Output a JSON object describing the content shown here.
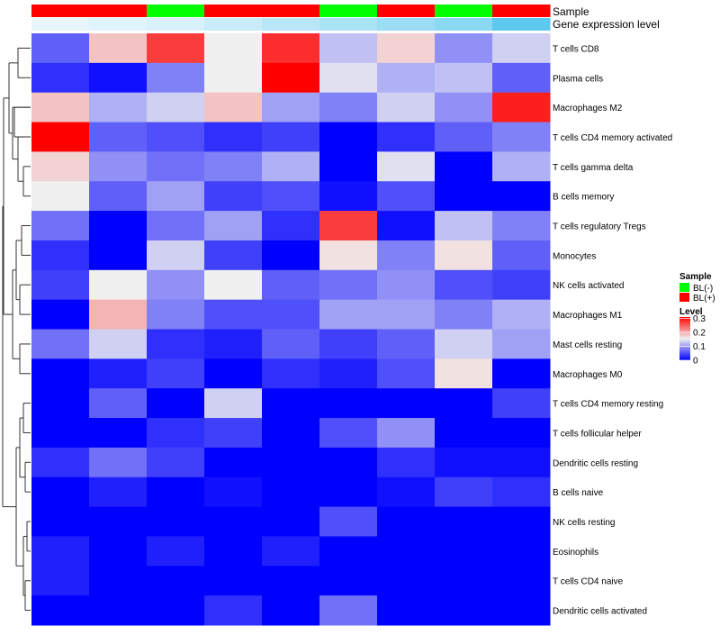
{
  "chart_data": {
    "type": "heatmap",
    "title": "",
    "annotation_tracks": [
      {
        "label": "Sample",
        "values": [
          "BL(+)",
          "BL(+)",
          "BL(-)",
          "BL(+)",
          "BL(+)",
          "BL(-)",
          "BL(+)",
          "BL(-)",
          "BL(+)"
        ]
      },
      {
        "label": "Gene expression level",
        "values": [
          0.0,
          0.05,
          0.1,
          0.2,
          0.3,
          0.4,
          0.5,
          0.6,
          0.9
        ]
      }
    ],
    "rows": [
      "T cells CD8",
      "Plasma cells",
      "Macrophages M2",
      "T cells CD4 memory activated",
      "T cells gamma delta",
      "B cells memory",
      "T cells regulatory  Tregs",
      "Monocytes",
      "NK cells activated",
      "Macrophages M1",
      "Mast cells resting",
      "Macrophages M0",
      "T cells CD4 memory resting",
      "T cells follicular helper",
      "Dendritic cells resting",
      "B cells naive",
      "NK cells resting",
      "Eosinophils",
      "T cells CD4 naive",
      "Dendritic cells activated"
    ],
    "values": [
      [
        0.06,
        0.18,
        0.27,
        0.15,
        0.28,
        0.12,
        0.17,
        0.09,
        0.13
      ],
      [
        0.03,
        0.01,
        0.08,
        0.15,
        0.31,
        0.14,
        0.11,
        0.12,
        0.06
      ],
      [
        0.18,
        0.11,
        0.13,
        0.18,
        0.1,
        0.08,
        0.13,
        0.09,
        0.29
      ],
      [
        0.31,
        0.06,
        0.05,
        0.03,
        0.04,
        0.0,
        0.03,
        0.06,
        0.08
      ],
      [
        0.17,
        0.09,
        0.07,
        0.08,
        0.11,
        0.0,
        0.14,
        0.0,
        0.11
      ],
      [
        0.15,
        0.06,
        0.1,
        0.04,
        0.05,
        0.01,
        0.05,
        0.0,
        0.0
      ],
      [
        0.07,
        0.0,
        0.07,
        0.1,
        0.03,
        0.27,
        0.01,
        0.12,
        0.08
      ],
      [
        0.03,
        0.0,
        0.13,
        0.04,
        0.0,
        0.16,
        0.08,
        0.16,
        0.06
      ],
      [
        0.04,
        0.15,
        0.09,
        0.15,
        0.06,
        0.07,
        0.09,
        0.05,
        0.04
      ],
      [
        0.0,
        0.19,
        0.08,
        0.05,
        0.05,
        0.1,
        0.1,
        0.08,
        0.11
      ],
      [
        0.07,
        0.13,
        0.03,
        0.02,
        0.06,
        0.04,
        0.06,
        0.13,
        0.1
      ],
      [
        0.0,
        0.02,
        0.04,
        0.0,
        0.03,
        0.02,
        0.05,
        0.16,
        0.0
      ],
      [
        0.0,
        0.06,
        0.0,
        0.13,
        0.0,
        0.0,
        0.0,
        0.0,
        0.04
      ],
      [
        0.0,
        0.0,
        0.03,
        0.04,
        0.0,
        0.05,
        0.09,
        0.0,
        0.0
      ],
      [
        0.03,
        0.07,
        0.04,
        0.0,
        0.0,
        0.0,
        0.03,
        0.01,
        0.01
      ],
      [
        0.0,
        0.02,
        0.0,
        0.01,
        0.0,
        0.0,
        0.01,
        0.04,
        0.03
      ],
      [
        0.0,
        0.0,
        0.0,
        0.0,
        0.0,
        0.05,
        0.0,
        0.0,
        0.0
      ],
      [
        0.02,
        0.0,
        0.02,
        0.0,
        0.02,
        0.0,
        0.0,
        0.0,
        0.0
      ],
      [
        0.02,
        0.0,
        0.0,
        0.0,
        0.0,
        0.0,
        0.0,
        0.0,
        0.0
      ],
      [
        0.0,
        0.0,
        0.0,
        0.03,
        0.0,
        0.07,
        0.0,
        0.0,
        0.0
      ]
    ],
    "color_scale": {
      "low": "#0000ff",
      "mid": "#f0f0f0",
      "high": "#ff0000",
      "domain": [
        0,
        0.15,
        0.31
      ]
    },
    "legends": {
      "sample": {
        "title": "Sample",
        "items": [
          {
            "label": "BL(-)",
            "color": "#00ff00"
          },
          {
            "label": "BL(+)",
            "color": "#ff0000"
          }
        ]
      },
      "level": {
        "title": "Level",
        "ticks": [
          {
            "label": "0.3",
            "value": 0.3
          },
          {
            "label": "0.2",
            "value": 0.2
          },
          {
            "label": "0.1",
            "value": 0.1
          },
          {
            "label": "0",
            "value": 0.0
          }
        ]
      }
    }
  }
}
